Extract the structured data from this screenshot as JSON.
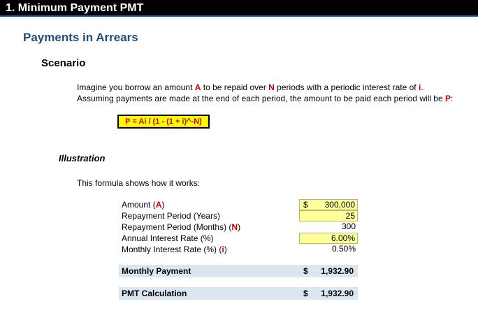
{
  "title": "1. Minimum Payment PMT",
  "section_heading": "Payments in Arrears",
  "scenario_heading": "Scenario",
  "scenario": {
    "line1": {
      "part1": "Imagine you borrow an amount ",
      "A": "A",
      "part2": " to be repaid over ",
      "N": "N",
      "part3": " periods with a periodic interest rate of ",
      "i": "i",
      "part4": "."
    },
    "line2": {
      "part1": "Assuming payments are made at the end of each period, the amount to be paid each period will be ",
      "P": "P",
      "part2": ":"
    }
  },
  "formula": "P = Ai / (1 - (1 + i)^-N)",
  "illustration_heading": "Illustration",
  "illustration_intro": "This formula shows how it works:",
  "inputs": {
    "amount": {
      "label": "Amount (",
      "symbol": "A",
      "close": ")",
      "currency": "$",
      "value": "300,000"
    },
    "years": {
      "label": "Repayment Period (Years)",
      "value": "25"
    },
    "months": {
      "label": "Repayment Period (Months) (",
      "symbol": "N",
      "close": ")",
      "value": "300"
    },
    "annual_rate": {
      "label": "Annual Interest Rate (%)",
      "value": "6.00%"
    },
    "monthly_rate": {
      "label": "Monthly Interest Rate (%) (",
      "symbol": "i",
      "close": ")",
      "value": "0.50%"
    }
  },
  "monthly_payment": {
    "label": "Monthly Payment",
    "currency": "$",
    "value": "1,932.90"
  },
  "pmt_calc": {
    "label": "PMT Calculation",
    "currency": "$",
    "value": "1,932.90"
  },
  "colors": {
    "title_bg": "#000000",
    "heading_blue": "#1f4e79",
    "input_yellow": "#ffff99",
    "formula_yellow": "#ffff00",
    "accent_red": "#cc0000",
    "band_blue": "#dce6f1"
  }
}
